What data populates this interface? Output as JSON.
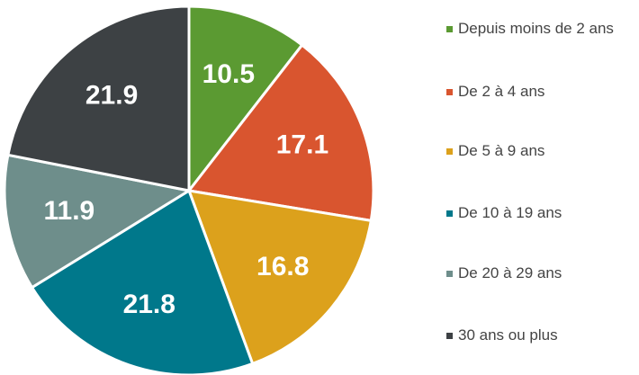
{
  "chart_data": {
    "type": "pie",
    "categories": [
      "Depuis moins de 2 ans",
      "De 2 à 4 ans",
      "De 5 à 9 ans",
      "De 10 à 19 ans",
      "De 20 à 29 ans",
      "30 ans ou plus"
    ],
    "values": [
      10.5,
      17.1,
      16.8,
      21.8,
      11.9,
      21.9
    ],
    "colors": [
      "#5b9a32",
      "#d9552f",
      "#dca11c",
      "#00788b",
      "#6e8e8b",
      "#3d4144"
    ],
    "legend": "right"
  }
}
